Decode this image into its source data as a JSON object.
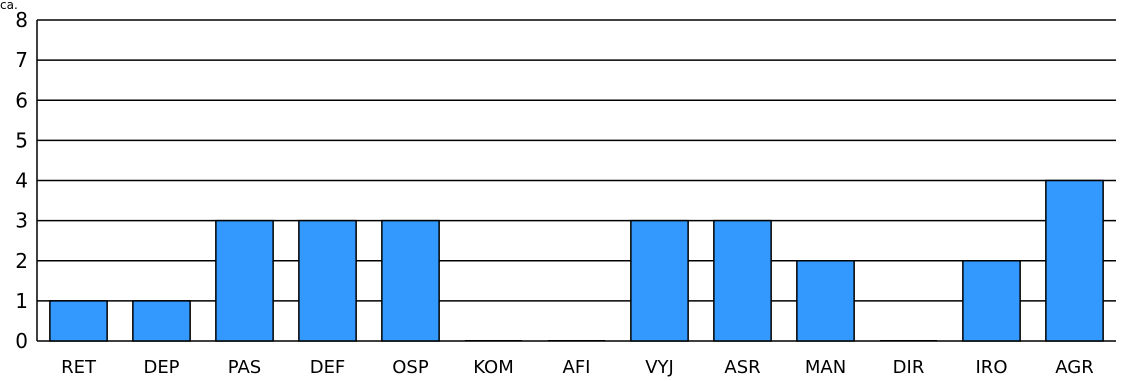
{
  "corner_text": "ca.",
  "chart_data": {
    "type": "bar",
    "title": "",
    "xlabel": "",
    "ylabel": "",
    "categories": [
      "RET",
      "DEP",
      "PAS",
      "DEF",
      "OSP",
      "KOM",
      "AFI",
      "VYJ",
      "ASR",
      "MAN",
      "DIR",
      "IRO",
      "AGR"
    ],
    "values": [
      1,
      1,
      3,
      3,
      3,
      0,
      0,
      3,
      3,
      2,
      0,
      2,
      4
    ],
    "ylim": [
      0,
      8
    ],
    "yticks": [
      "0",
      "1",
      "2",
      "3",
      "4",
      "5",
      "6",
      "7",
      "8"
    ],
    "grid": true,
    "legend": "none",
    "bar_color": "#3399ff",
    "bar_outline_color": "#000000"
  }
}
